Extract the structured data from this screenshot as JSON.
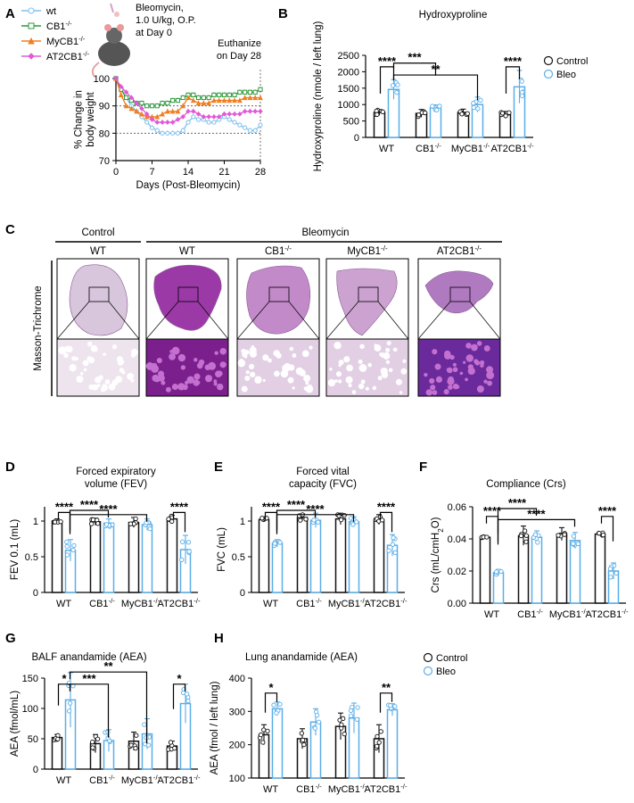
{
  "colors": {
    "control": "#111111",
    "bleo": "#5aaee8",
    "wt": "#7ec0ee",
    "cb1": "#2e9a3c",
    "mycb1": "#f07f22",
    "at2cb1": "#e05ad6"
  },
  "panel_letters": [
    "A",
    "B",
    "C",
    "D",
    "E",
    "F",
    "G",
    "H"
  ],
  "panel_a": {
    "legend": [
      "wt",
      "CB1-/-",
      "MyCB1-/-",
      "AT2CB1-/-"
    ],
    "note_lines": [
      "Bleomycin,",
      "1.0 U/kg, O.P.",
      "at Day 0"
    ],
    "euthanize": [
      "Euthanize",
      "on Day 28"
    ]
  },
  "panel_c": {
    "group_control": "Control",
    "group_bleomycin": "Bleomycin",
    "columns": [
      "WT",
      "WT",
      "CB1-/-",
      "MyCB1-/-",
      "AT2CB1-/-"
    ],
    "stain_label": "Masson-Trichrome"
  },
  "panel_h_legend": [
    "Control",
    "Bleo"
  ],
  "chart_data": [
    {
      "panel": "A",
      "type": "line",
      "xlabel": "Days (Post-Bleomycin)",
      "ylabel": "% Change in body weight",
      "xlim": [
        0,
        28
      ],
      "ylim": [
        70,
        100
      ],
      "xticks": [
        0,
        7,
        14,
        21,
        28
      ],
      "yticks": [
        70,
        80,
        90,
        100
      ],
      "x": [
        0,
        1,
        2,
        3,
        4,
        5,
        6,
        7,
        8,
        9,
        10,
        11,
        12,
        13,
        14,
        15,
        16,
        17,
        18,
        19,
        20,
        21,
        22,
        23,
        24,
        25,
        26,
        27,
        28
      ],
      "series": [
        {
          "name": "wt",
          "values": [
            100,
            96,
            93,
            90,
            88,
            86,
            84,
            82,
            81,
            80,
            80,
            80,
            80,
            81,
            84,
            86,
            85,
            85,
            84,
            84,
            85,
            86,
            85,
            84,
            83,
            82,
            81,
            81,
            83
          ]
        },
        {
          "name": "CB1-/-",
          "values": [
            100,
            96,
            93,
            92,
            91,
            91,
            90,
            90,
            90,
            91,
            91,
            92,
            92,
            93,
            94,
            94,
            93,
            93,
            93,
            94,
            94,
            94,
            94,
            94,
            95,
            95,
            95,
            95,
            96
          ]
        },
        {
          "name": "MyCB1-/-",
          "values": [
            100,
            94,
            90,
            89,
            88,
            87,
            86,
            86,
            86,
            87,
            88,
            88,
            88,
            90,
            93,
            92,
            91,
            91,
            91,
            92,
            92,
            92,
            92,
            92,
            92,
            93,
            93,
            93,
            93
          ]
        },
        {
          "name": "AT2CB1-/-",
          "values": [
            100,
            97,
            95,
            93,
            91,
            89,
            87,
            85,
            84,
            84,
            84,
            84,
            85,
            86,
            88,
            88,
            87,
            86,
            86,
            86,
            86,
            87,
            87,
            87,
            87,
            88,
            88,
            88,
            88
          ]
        }
      ]
    },
    {
      "panel": "B",
      "type": "bar",
      "title": "Hydroxyproline",
      "ylabel": "Hydroxyproline (nmole / left lung)",
      "ylim": [
        0,
        2500
      ],
      "yticks": [
        0,
        500,
        1000,
        1500,
        2000,
        2500
      ],
      "categories": [
        "WT",
        "CB1-/-",
        "MyCB1-/-",
        "AT2CB1-/-"
      ],
      "series": [
        {
          "name": "Control",
          "values": [
            760,
            730,
            760,
            690
          ],
          "errors": [
            90,
            120,
            100,
            100
          ]
        },
        {
          "name": "Bleo",
          "values": [
            1460,
            900,
            1000,
            1540
          ],
          "errors": [
            300,
            90,
            230,
            500
          ]
        }
      ],
      "legend": [
        "Control",
        "Bleo"
      ],
      "annotations": [
        "****",
        "***",
        "**",
        "****"
      ]
    },
    {
      "panel": "D",
      "type": "bar",
      "title": "Forced expiratory volume (FEV)",
      "ylabel": "FEV 0.1 (mL)",
      "ylim": [
        0,
        1.2
      ],
      "yticks": [
        0,
        0.5,
        1.0
      ],
      "categories": [
        "WT",
        "CB1-/-",
        "MyCB1-/-",
        "AT2CB1-/-"
      ],
      "series": [
        {
          "name": "Control",
          "values": [
            1.0,
            0.99,
            0.98,
            1.03
          ],
          "errors": [
            0.03,
            0.05,
            0.07,
            0.05
          ]
        },
        {
          "name": "Bleo",
          "values": [
            0.59,
            0.97,
            0.95,
            0.6
          ],
          "errors": [
            0.15,
            0.06,
            0.08,
            0.2
          ]
        }
      ],
      "annotations": [
        "****",
        "****",
        "****",
        "****"
      ]
    },
    {
      "panel": "E",
      "type": "bar",
      "title": "Forced vital capacity (FVC)",
      "ylabel": "FVC (mL)",
      "ylim": [
        0,
        1.2
      ],
      "yticks": [
        0,
        0.5,
        1.0
      ],
      "categories": [
        "WT",
        "CB1-/-",
        "MyCB1-/-",
        "AT2CB1-/-"
      ],
      "series": [
        {
          "name": "Control",
          "values": [
            1.02,
            1.05,
            1.03,
            1.02
          ],
          "errors": [
            0.03,
            0.05,
            0.08,
            0.07
          ]
        },
        {
          "name": "Bleo",
          "values": [
            0.69,
            1.01,
            0.99,
            0.66
          ],
          "errors": [
            0.05,
            0.1,
            0.07,
            0.15
          ]
        }
      ],
      "annotations": [
        "****",
        "****",
        "****",
        "****"
      ]
    },
    {
      "panel": "F",
      "type": "bar",
      "title": "Compliance (Crs)",
      "ylabel": "Crs (mL/cmH2O)",
      "ylim": [
        0,
        0.06
      ],
      "yticks": [
        0.0,
        0.02,
        0.04,
        0.06
      ],
      "categories": [
        "WT",
        "CB1-/-",
        "MyCB1-/-",
        "AT2CB1-/-"
      ],
      "series": [
        {
          "name": "Control",
          "values": [
            0.041,
            0.042,
            0.043,
            0.043
          ],
          "errors": [
            0.001,
            0.006,
            0.004,
            0.001
          ]
        },
        {
          "name": "Bleo",
          "values": [
            0.019,
            0.041,
            0.039,
            0.02
          ],
          "errors": [
            0.002,
            0.004,
            0.005,
            0.005
          ]
        }
      ],
      "annotations": [
        "****",
        "****",
        "****",
        "****"
      ]
    },
    {
      "panel": "G",
      "type": "bar",
      "title": "BALF anandamide (AEA)",
      "ylabel": "AEA (fmol/mL)",
      "ylim": [
        0,
        150
      ],
      "yticks": [
        0,
        50,
        100,
        150
      ],
      "categories": [
        "WT",
        "CB1-/-",
        "MyCB1-/-",
        "AT2CB1-/-"
      ],
      "series": [
        {
          "name": "Control",
          "values": [
            52,
            42,
            46,
            38
          ],
          "errors": [
            5,
            15,
            15,
            8
          ]
        },
        {
          "name": "Bleo",
          "values": [
            114,
            47,
            58,
            108
          ],
          "errors": [
            45,
            18,
            25,
            32
          ]
        }
      ],
      "annotations": [
        "*",
        "***",
        "**",
        "*"
      ]
    },
    {
      "panel": "H",
      "type": "bar",
      "title": "Lung anandamide (AEA)",
      "ylabel": "AEA (fmol / left lung)",
      "ylim": [
        100,
        400
      ],
      "yticks": [
        100,
        200,
        300,
        400
      ],
      "categories": [
        "WT",
        "CB1-/-",
        "MyCB1-/-",
        "AT2CB1-/-"
      ],
      "series": [
        {
          "name": "Control",
          "values": [
            230,
            218,
            255,
            218
          ],
          "errors": [
            30,
            30,
            40,
            42
          ]
        },
        {
          "name": "Bleo",
          "values": [
            308,
            268,
            280,
            305
          ],
          "errors": [
            20,
            40,
            45,
            18
          ]
        }
      ],
      "legend": [
        "Control",
        "Bleo"
      ],
      "annotations": [
        "*",
        "**"
      ]
    }
  ]
}
